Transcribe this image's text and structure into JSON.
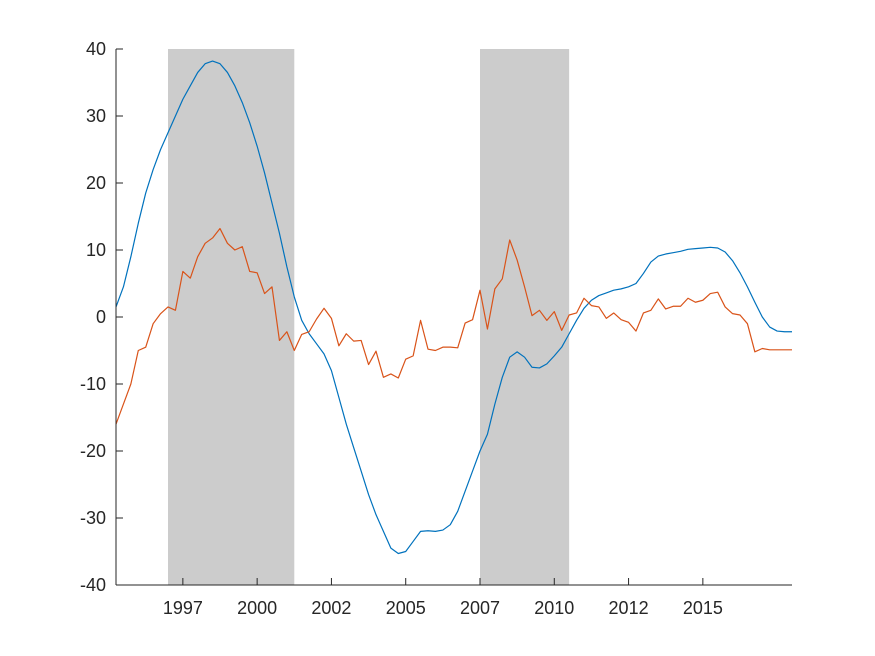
{
  "chart_data": {
    "type": "line",
    "title": "",
    "xlabel": "",
    "ylabel": "",
    "xlim": [
      1995.0,
      2017.75
    ],
    "ylim": [
      -40,
      40
    ],
    "x_ticks": [
      {
        "value": 1997.25,
        "label": "1997"
      },
      {
        "value": 1999.75,
        "label": "2000"
      },
      {
        "value": 2002.25,
        "label": "2002"
      },
      {
        "value": 2004.75,
        "label": "2005"
      },
      {
        "value": 2007.25,
        "label": "2007"
      },
      {
        "value": 2009.75,
        "label": "2010"
      },
      {
        "value": 2012.25,
        "label": "2012"
      },
      {
        "value": 2014.75,
        "label": "2015"
      }
    ],
    "y_ticks": [
      {
        "value": 40,
        "label": "40"
      },
      {
        "value": 30,
        "label": "30"
      },
      {
        "value": 20,
        "label": "20"
      },
      {
        "value": 10,
        "label": "10"
      },
      {
        "value": 0,
        "label": "0"
      },
      {
        "value": -10,
        "label": "-10"
      },
      {
        "value": -20,
        "label": "-20"
      },
      {
        "value": -30,
        "label": "-30"
      },
      {
        "value": -40,
        "label": "-40"
      }
    ],
    "shaded_periods": [
      {
        "start": 1996.75,
        "end": 2001.0
      },
      {
        "start": 2007.25,
        "end": 2010.25
      }
    ],
    "colors": {
      "shading": "#cccccc",
      "axis": "#262626",
      "series1": "#0072bd",
      "series2": "#d95319"
    },
    "series": [
      {
        "color": "#0072bd",
        "x": [
          1995.0,
          1995.25,
          1995.5,
          1995.75,
          1996.0,
          1996.25,
          1996.5,
          1996.75,
          1997.0,
          1997.25,
          1997.5,
          1997.75,
          1998.0,
          1998.25,
          1998.5,
          1998.75,
          1999.0,
          1999.25,
          1999.5,
          1999.75,
          2000.0,
          2000.25,
          2000.5,
          2000.75,
          2001.0,
          2001.25,
          2001.5,
          2001.75,
          2002.0,
          2002.25,
          2002.5,
          2002.75,
          2003.0,
          2003.25,
          2003.5,
          2003.75,
          2004.0,
          2004.25,
          2004.5,
          2004.75,
          2005.0,
          2005.25,
          2005.5,
          2005.75,
          2006.0,
          2006.25,
          2006.5,
          2006.75,
          2007.0,
          2007.25,
          2007.5,
          2007.75,
          2008.0,
          2008.25,
          2008.5,
          2008.75,
          2009.0,
          2009.25,
          2009.5,
          2009.75,
          2010.0,
          2010.25,
          2010.5,
          2010.75,
          2011.0,
          2011.25,
          2011.5,
          2011.75,
          2012.0,
          2012.25,
          2012.5,
          2012.75,
          2013.0,
          2013.25,
          2013.5,
          2013.75,
          2014.0,
          2014.25,
          2014.5,
          2014.75,
          2015.0,
          2015.25,
          2015.5,
          2015.75,
          2016.0,
          2016.25,
          2016.5,
          2016.75,
          2017.0,
          2017.25,
          2017.5,
          2017.75
        ],
        "y": [
          1.5,
          4.5,
          9,
          14,
          18.5,
          22,
          25,
          27.5,
          30,
          32.5,
          34.5,
          36.5,
          37.8,
          38.2,
          37.8,
          36.5,
          34.5,
          32,
          29,
          25.5,
          21.5,
          17,
          12.5,
          7.5,
          3,
          -0.5,
          -2.5,
          -4,
          -5.5,
          -8,
          -12,
          -16,
          -19.5,
          -23,
          -26.5,
          -29.5,
          -32,
          -34.5,
          -35.3,
          -35,
          -33.5,
          -32,
          -31.9,
          -32,
          -31.8,
          -31,
          -29,
          -26,
          -23,
          -20,
          -17.5,
          -13,
          -9,
          -6,
          -5.2,
          -6,
          -7.5,
          -7.6,
          -7,
          -5.8,
          -4.5,
          -2.5,
          -0.5,
          1.3,
          2.5,
          3.2,
          3.6,
          4,
          4.2,
          4.5,
          5,
          6.5,
          8.2,
          9.1,
          9.4,
          9.6,
          9.8,
          10.1,
          10.2,
          10.3,
          10.4,
          10.3,
          9.7,
          8.4,
          6.6,
          4.5,
          2.2,
          0,
          -1.5,
          -2.1,
          -2.2,
          -2.2
        ]
      },
      {
        "color": "#d95319",
        "x": [
          1995.0,
          1995.25,
          1995.5,
          1995.75,
          1996.0,
          1996.25,
          1996.5,
          1996.75,
          1997.0,
          1997.25,
          1997.5,
          1997.75,
          1998.0,
          1998.25,
          1998.5,
          1998.75,
          1999.0,
          1999.25,
          1999.5,
          1999.75,
          2000.0,
          2000.25,
          2000.5,
          2000.75,
          2001.0,
          2001.25,
          2001.5,
          2001.75,
          2002.0,
          2002.25,
          2002.5,
          2002.75,
          2003.0,
          2003.25,
          2003.5,
          2003.75,
          2004.0,
          2004.25,
          2004.5,
          2004.75,
          2005.0,
          2005.25,
          2005.5,
          2005.75,
          2006.0,
          2006.25,
          2006.5,
          2006.75,
          2007.0,
          2007.25,
          2007.5,
          2007.75,
          2008.0,
          2008.25,
          2008.5,
          2008.75,
          2009.0,
          2009.25,
          2009.5,
          2009.75,
          2010.0,
          2010.25,
          2010.5,
          2010.75,
          2011.0,
          2011.25,
          2011.5,
          2011.75,
          2012.0,
          2012.25,
          2012.5,
          2012.75,
          2013.0,
          2013.25,
          2013.5,
          2013.75,
          2014.0,
          2014.25,
          2014.5,
          2014.75,
          2015.0,
          2015.25,
          2015.5,
          2015.75,
          2016.0,
          2016.25,
          2016.5,
          2016.75,
          2017.0,
          2017.25,
          2017.5,
          2017.75
        ],
        "y": [
          -16,
          -13,
          -10,
          -5,
          -4.5,
          -1,
          0.5,
          1.5,
          1,
          6.8,
          5.8,
          9,
          11,
          11.8,
          13.2,
          11,
          10,
          10.5,
          6.8,
          6.6,
          3.5,
          4.5,
          -3.5,
          -2.2,
          -5,
          -2.6,
          -2.2,
          -0.3,
          1.3,
          -0.2,
          -4.3,
          -2.5,
          -3.6,
          -3.5,
          -7.1,
          -5.1,
          -9,
          -8.5,
          -9.1,
          -6.3,
          -5.8,
          -0.5,
          -4.8,
          -5,
          -4.5,
          -4.5,
          -4.6,
          -0.9,
          -0.4,
          4,
          -1.8,
          4.2,
          5.7,
          11.5,
          8.5,
          4.5,
          0.2,
          1,
          -0.5,
          0.8,
          -2,
          0.3,
          0.6,
          2.8,
          1.7,
          1.5,
          -0.2,
          0.6,
          -0.4,
          -0.8,
          -2.1,
          0.6,
          1,
          2.7,
          1.2,
          1.6,
          1.6,
          2.8,
          2.2,
          2.5,
          3.5,
          3.7,
          1.5,
          0.5,
          0.3,
          -1,
          -5.2,
          -4.7,
          -4.9,
          -4.9,
          -4.9,
          -4.9
        ]
      }
    ]
  }
}
